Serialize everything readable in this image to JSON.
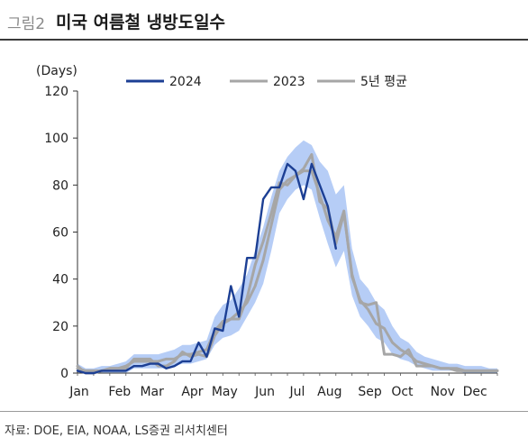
{
  "header": {
    "figure_number": "그림2",
    "title": "미국 여름철 냉방도일수"
  },
  "source": "자료: DOE, EIA, NOAA, LS증권 리서치센터",
  "colors": {
    "s2024": "#1c3f94",
    "s2023": "#a6a6a6",
    "avg5": "#a6a6a6",
    "band": "#a9c4f5"
  },
  "chart_data": {
    "type": "line",
    "title": "미국 여름철 냉방도일수",
    "ylabel": "(Days)",
    "ylim": [
      0,
      120
    ],
    "yticks": [
      0,
      20,
      40,
      60,
      80,
      100,
      120
    ],
    "xlim": [
      0,
      52
    ],
    "xtick_labels": [
      "Jan",
      "Feb",
      "Mar",
      "Apr",
      "May",
      "Jun",
      "Jul",
      "Aug",
      "Sep",
      "Oct",
      "Nov",
      "Dec"
    ],
    "xtick_weeks": [
      0,
      5,
      9,
      14,
      18,
      23,
      27,
      31,
      36,
      40,
      45,
      49
    ],
    "legend": [
      "2024",
      "2023",
      "5년 평균"
    ],
    "legend_position": "top",
    "grid": false,
    "series": [
      {
        "name": "2024",
        "x": [
          0,
          1,
          2,
          3,
          4,
          5,
          6,
          7,
          8,
          9,
          10,
          11,
          12,
          13,
          14,
          15,
          16,
          17,
          18,
          19,
          20,
          21,
          22,
          23,
          24,
          25,
          26,
          27,
          28,
          29,
          30,
          31,
          32,
          33,
          34,
          35,
          36
        ],
        "values": [
          1,
          0,
          0,
          1,
          1,
          1,
          1,
          3,
          3,
          4,
          4,
          2,
          3,
          5,
          5,
          13,
          7,
          19,
          18,
          37,
          24,
          49,
          49,
          74,
          79,
          79,
          89,
          86,
          74,
          89,
          80,
          71,
          53,
          null,
          null,
          null,
          null
        ]
      },
      {
        "name": "2023",
        "x": [
          0,
          1,
          2,
          3,
          4,
          5,
          6,
          7,
          8,
          9,
          10,
          11,
          12,
          13,
          14,
          15,
          16,
          17,
          18,
          19,
          20,
          21,
          22,
          23,
          24,
          25,
          26,
          27,
          28,
          29,
          30,
          31,
          32,
          33,
          34,
          35,
          36,
          37,
          38,
          39,
          40,
          41,
          42,
          43,
          44,
          45,
          46,
          47,
          48,
          49,
          50,
          51,
          52
        ],
        "values": [
          3,
          0,
          0,
          1,
          2,
          2,
          2,
          6,
          6,
          6,
          3,
          3,
          5,
          9,
          7,
          8,
          7,
          16,
          21,
          23,
          23,
          32,
          46,
          56,
          68,
          81,
          80,
          84,
          87,
          93,
          73,
          70,
          55,
          68,
          42,
          30,
          29,
          30,
          8,
          8,
          7,
          10,
          3,
          3,
          3,
          2,
          2,
          1,
          1,
          1,
          1,
          1,
          1
        ]
      },
      {
        "name": "5년 평균",
        "x": [
          0,
          1,
          2,
          3,
          4,
          5,
          6,
          7,
          8,
          9,
          10,
          11,
          12,
          13,
          14,
          15,
          16,
          17,
          18,
          19,
          20,
          21,
          22,
          23,
          24,
          25,
          26,
          27,
          28,
          29,
          30,
          31,
          32,
          33,
          34,
          35,
          36,
          37,
          38,
          39,
          40,
          41,
          42,
          43,
          44,
          45,
          46,
          47,
          48,
          49,
          50,
          51,
          52
        ],
        "values": [
          2,
          1,
          1,
          1,
          2,
          2,
          3,
          5,
          5,
          5,
          5,
          6,
          6,
          8,
          8,
          9,
          10,
          18,
          22,
          23,
          26,
          30,
          37,
          48,
          63,
          78,
          82,
          84,
          86,
          86,
          76,
          65,
          58,
          69,
          41,
          31,
          27,
          21,
          19,
          13,
          10,
          8,
          5,
          4,
          3,
          2,
          2,
          2,
          1,
          1,
          1,
          1,
          1
        ]
      },
      {
        "name": "",
        "type": "area-range",
        "x": [
          0,
          1,
          2,
          3,
          4,
          5,
          6,
          7,
          8,
          9,
          10,
          11,
          12,
          13,
          14,
          15,
          16,
          17,
          18,
          19,
          20,
          21,
          22,
          23,
          24,
          25,
          26,
          27,
          28,
          29,
          30,
          31,
          32,
          33,
          34,
          35,
          36,
          37,
          38,
          39,
          40,
          41,
          42,
          43,
          44,
          45,
          46,
          47,
          48,
          49,
          50,
          51,
          52
        ],
        "low": [
          0,
          0,
          0,
          0,
          0,
          0,
          0,
          2,
          2,
          2,
          2,
          2,
          3,
          4,
          4,
          5,
          6,
          12,
          15,
          16,
          18,
          24,
          30,
          38,
          52,
          68,
          74,
          78,
          80,
          78,
          66,
          55,
          45,
          52,
          33,
          24,
          20,
          15,
          13,
          8,
          6,
          5,
          3,
          2,
          1,
          1,
          1,
          1,
          0,
          0,
          0,
          0,
          0
        ],
        "high": [
          4,
          2,
          2,
          3,
          3,
          4,
          5,
          8,
          8,
          8,
          8,
          9,
          10,
          12,
          12,
          13,
          14,
          24,
          29,
          31,
          36,
          42,
          52,
          62,
          75,
          86,
          92,
          96,
          99,
          97,
          90,
          86,
          76,
          80,
          53,
          40,
          36,
          30,
          27,
          20,
          15,
          13,
          9,
          7,
          6,
          5,
          4,
          4,
          3,
          3,
          3,
          2,
          2
        ]
      }
    ]
  }
}
